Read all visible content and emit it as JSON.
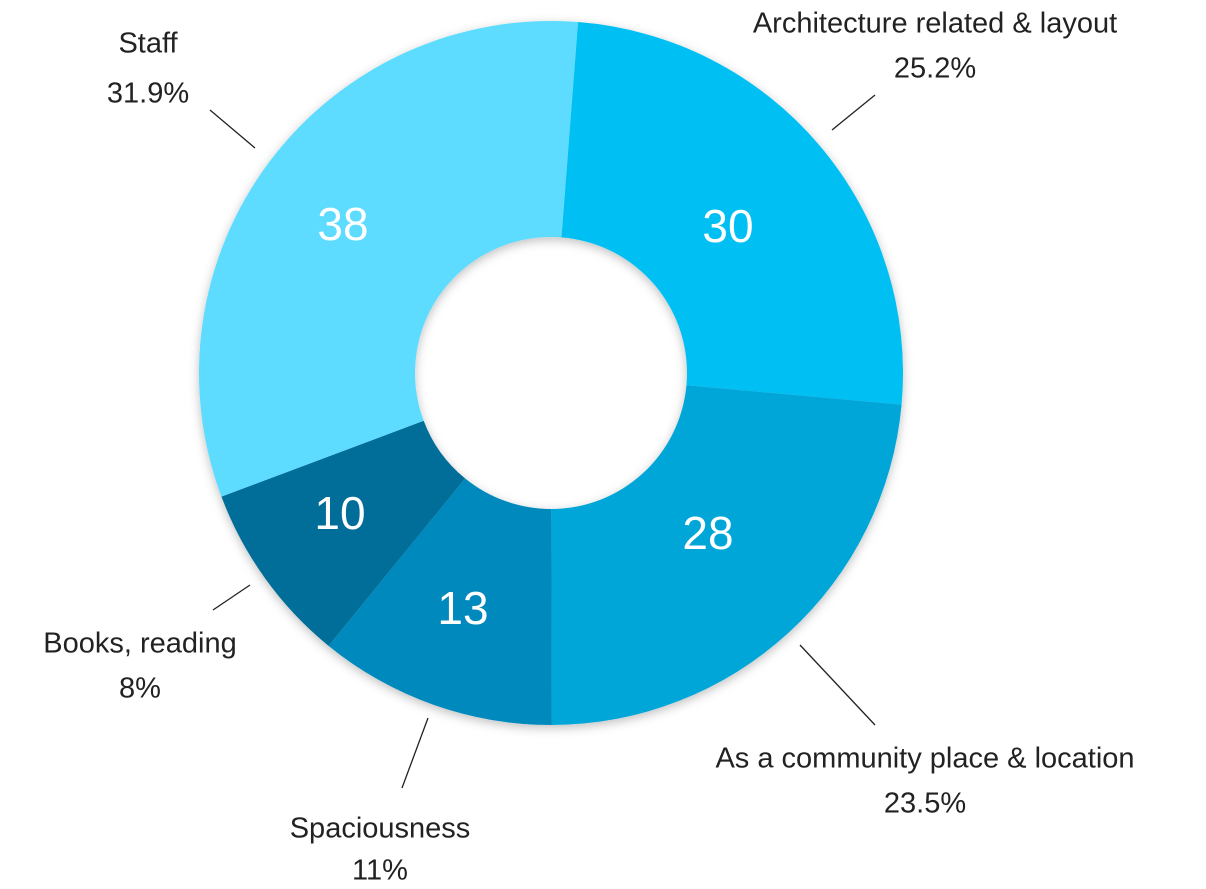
{
  "chart_data": {
    "type": "donut",
    "categories": [
      "Architecture related & layout",
      "As a community place & location",
      "Spaciousness",
      "Books, reading",
      "Staff"
    ],
    "values": [
      30,
      28,
      13,
      10,
      38
    ],
    "percent_labels": [
      "25.2%",
      "23.5%",
      "11%",
      "8%",
      "31.9%"
    ],
    "colors": [
      "#00c0f3",
      "#00a6d8",
      "#0089bc",
      "#006e99",
      "#5ddcff"
    ]
  }
}
